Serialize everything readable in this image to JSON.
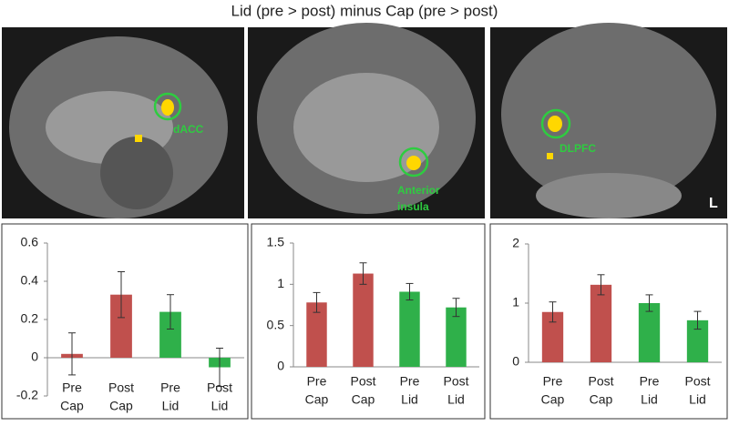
{
  "figure": {
    "title": "Lid (pre > post) minus Cap (pre > post)",
    "images": [
      {
        "label": [
          "dACC"
        ]
      },
      {
        "label": [
          "Anterior",
          "insula"
        ]
      },
      {
        "label": [
          "DLPFC"
        ],
        "side": "L"
      }
    ]
  },
  "chart_data": [
    {
      "type": "bar",
      "categories": [
        [
          "Pre",
          "Cap"
        ],
        [
          "Post",
          "Cap"
        ],
        [
          "Pre",
          "Lid"
        ],
        [
          "Post",
          "Lid"
        ]
      ],
      "values": [
        0.02,
        0.33,
        0.24,
        -0.05
      ],
      "errors": [
        0.11,
        0.12,
        0.09,
        0.1
      ],
      "colors": [
        "#c0504d",
        "#c0504d",
        "#2fb04a",
        "#2fb04a"
      ],
      "ylim": [
        -0.2,
        0.6
      ],
      "yticks": [
        -0.2,
        0,
        0.2,
        0.4,
        0.6
      ]
    },
    {
      "type": "bar",
      "categories": [
        [
          "Pre",
          "Cap"
        ],
        [
          "Post",
          "Cap"
        ],
        [
          "Pre",
          "Lid"
        ],
        [
          "Post",
          "Lid"
        ]
      ],
      "values": [
        0.78,
        1.13,
        0.91,
        0.72
      ],
      "errors": [
        0.12,
        0.13,
        0.1,
        0.11
      ],
      "colors": [
        "#c0504d",
        "#c0504d",
        "#2fb04a",
        "#2fb04a"
      ],
      "ylim": [
        0,
        1.5
      ],
      "yticks": [
        0,
        0.5,
        1,
        1.5
      ]
    },
    {
      "type": "bar",
      "categories": [
        [
          "Pre",
          "Cap"
        ],
        [
          "Post",
          "Cap"
        ],
        [
          "Pre",
          "Lid"
        ],
        [
          "Post",
          "Lid"
        ]
      ],
      "values": [
        0.85,
        1.31,
        1.0,
        0.71
      ],
      "errors": [
        0.17,
        0.17,
        0.14,
        0.15
      ],
      "colors": [
        "#c0504d",
        "#c0504d",
        "#2fb04a",
        "#2fb04a"
      ],
      "ylim": [
        0,
        2
      ],
      "yticks": [
        0,
        1,
        2
      ]
    }
  ]
}
